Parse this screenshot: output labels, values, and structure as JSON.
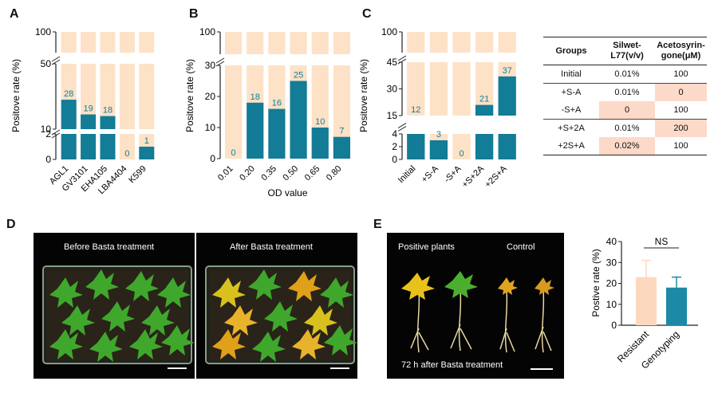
{
  "panels": {
    "A": "A",
    "B": "B",
    "C": "C",
    "D": "D",
    "E": "E"
  },
  "colors": {
    "bar": "#137c97",
    "background_bar": "#fde2c7",
    "resistant": "#fcd8bf",
    "genotyping": "#1c8aa6",
    "highlight": "#fcd9c8"
  },
  "chart_data": [
    {
      "panel": "A",
      "type": "bar",
      "ylabel": "Positove rate (%)",
      "categories": [
        "AGL1",
        "GV3101",
        "EHA105",
        "LBA4404",
        "K599"
      ],
      "values": [
        28,
        19,
        18,
        0,
        1
      ],
      "data_labels": [
        "28",
        "19",
        "18",
        "0",
        "1"
      ],
      "broken_axis": true,
      "y_ticks": [
        "0",
        "2",
        "10",
        "50",
        "100"
      ]
    },
    {
      "panel": "B",
      "type": "bar",
      "ylabel": "Positove  rate  (%)",
      "xlabel": "OD value",
      "categories": [
        "0.01",
        "0.20",
        "0.35",
        "0.50",
        "0.65",
        "0.80"
      ],
      "values": [
        0,
        18,
        16,
        25,
        10,
        7
      ],
      "data_labels": [
        "0",
        "18",
        "16",
        "25",
        "10",
        "7"
      ],
      "broken_axis": true,
      "y_ticks": [
        "0",
        "10",
        "20",
        "30",
        "100"
      ]
    },
    {
      "panel": "C",
      "type": "bar",
      "ylabel": "Positove rate (%)",
      "categories": [
        "Initial",
        "+S-A",
        "-S+A",
        "+S+2A",
        "+2S+A"
      ],
      "values": [
        12,
        3,
        0,
        21,
        37
      ],
      "data_labels": [
        "12",
        "3",
        "0",
        "21",
        "37"
      ],
      "broken_axis": true,
      "y_ticks": [
        "0",
        "2",
        "4",
        "15",
        "30",
        "45",
        "100"
      ]
    },
    {
      "panel": "E",
      "type": "bar",
      "ylabel": "Postive rate (%)",
      "categories": [
        "Resistant",
        "Genotyping"
      ],
      "values": [
        23,
        18
      ],
      "errors": [
        8,
        5
      ],
      "ylim": [
        0,
        40
      ],
      "y_ticks": [
        "0",
        "10",
        "20",
        "30",
        "40"
      ],
      "annotation": "NS"
    }
  ],
  "table": {
    "headers": [
      "Groups",
      "Silwet-\nL77(v/v)",
      "Acetosyrin-\ngone(μM)"
    ],
    "rows": [
      {
        "group": "Initial",
        "silwet": "0.01%",
        "aceto": "100"
      },
      {
        "group": "+S-A",
        "silwet": "0.01%",
        "aceto": "0"
      },
      {
        "group": "-S+A",
        "silwet": "0",
        "aceto": "100"
      },
      {
        "group": "+S+2A",
        "silwet": "0.01%",
        "aceto": "200"
      },
      {
        "group": "+2S+A",
        "silwet": "0.02%",
        "aceto": "100"
      }
    ]
  },
  "photos": {
    "before": "Before Basta treatment",
    "after": "After Basta treatment",
    "positive": "Positive plants",
    "control": "Control",
    "caption": "72 h after Basta treatment"
  }
}
